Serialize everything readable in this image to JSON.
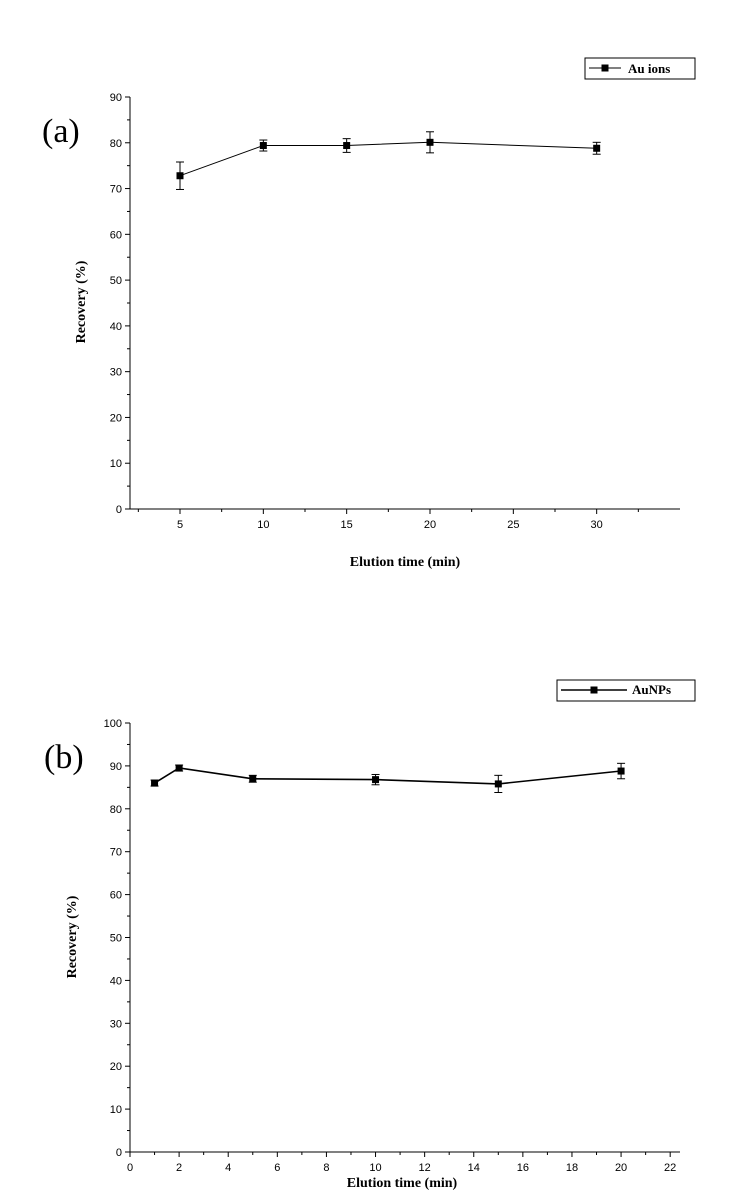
{
  "chart_data": [
    {
      "type": "line",
      "panel_label": "(a)",
      "xlabel": "Elution time (min)",
      "ylabel": "Recovery (%)",
      "xlim": [
        2,
        35
      ],
      "ylim": [
        0,
        90
      ],
      "x_ticks": [
        5,
        10,
        15,
        20,
        25,
        30
      ],
      "y_ticks": [
        0,
        10,
        20,
        30,
        40,
        50,
        60,
        70,
        80,
        90
      ],
      "legend_position": "top-right",
      "series": [
        {
          "name": "Au ions",
          "x": [
            5,
            10,
            15,
            20,
            30
          ],
          "y": [
            72.8,
            79.4,
            79.4,
            80.1,
            78.8
          ],
          "error": [
            3.0,
            1.2,
            1.5,
            2.3,
            1.3
          ]
        }
      ]
    },
    {
      "type": "line",
      "panel_label": "(b)",
      "xlabel": "Elution time (min)",
      "ylabel": "Recovery (%)",
      "xlim": [
        0,
        22.4
      ],
      "ylim": [
        0,
        100
      ],
      "x_ticks": [
        0,
        2,
        4,
        6,
        8,
        10,
        12,
        14,
        16,
        18,
        20,
        22
      ],
      "y_ticks": [
        0,
        10,
        20,
        30,
        40,
        50,
        60,
        70,
        80,
        90,
        100
      ],
      "legend_position": "top-right",
      "series": [
        {
          "name": "AuNPs",
          "x": [
            1,
            2,
            5,
            10,
            15,
            20
          ],
          "y": [
            86,
            89.5,
            87,
            86.8,
            85.8,
            88.8
          ],
          "error": [
            0.7,
            0.7,
            0.8,
            1.2,
            2.0,
            1.8
          ]
        }
      ]
    }
  ]
}
